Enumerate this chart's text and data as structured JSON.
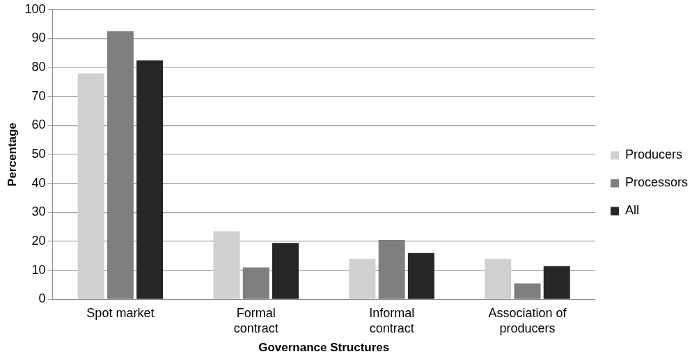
{
  "chart_data": {
    "type": "bar",
    "xlabel": "Governance Structures",
    "ylabel": "Percentage",
    "categories": [
      "Spot market",
      "Formal contract",
      "Informal contract",
      "Association of producers"
    ],
    "series": [
      {
        "name": "Producers",
        "color": "#d0d0d0",
        "values": [
          78,
          23.5,
          14,
          14
        ]
      },
      {
        "name": "Processors",
        "color": "#7f7f7f",
        "values": [
          92.5,
          11,
          20.5,
          5.5
        ]
      },
      {
        "name": "All",
        "color": "#262626",
        "values": [
          82.5,
          19.5,
          16,
          11.5
        ]
      }
    ],
    "ylim": [
      0,
      100
    ],
    "yticks": [
      0,
      10,
      20,
      30,
      40,
      50,
      60,
      70,
      80,
      90,
      100
    ],
    "grid": "y",
    "legend": "right"
  }
}
